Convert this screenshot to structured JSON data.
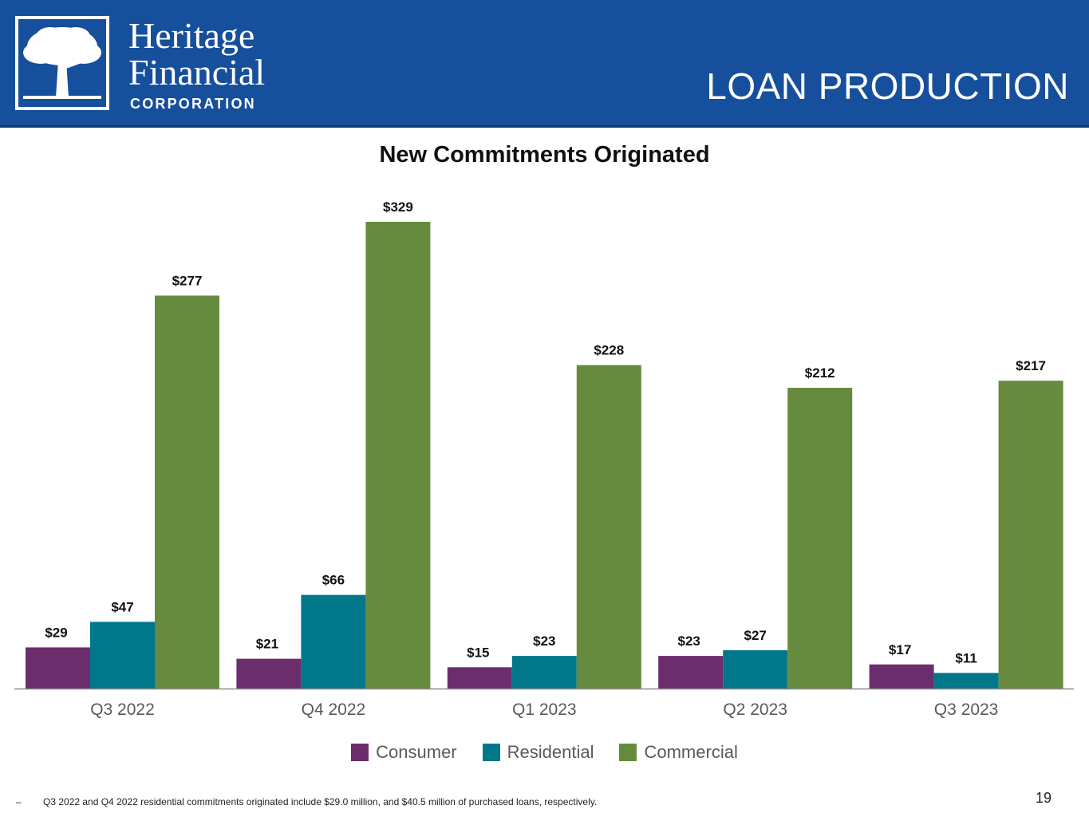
{
  "header": {
    "brand_line1": "Heritage",
    "brand_line2": "Financial",
    "brand_sub": "CORPORATION",
    "slide_title": "LOAN PRODUCTION",
    "background": "#164f9c",
    "logo_icon": "oak-tree-icon"
  },
  "chart_data": {
    "type": "bar",
    "title": "New Commitments Originated",
    "categories": [
      "Q3 2022",
      "Q4 2022",
      "Q1 2023",
      "Q2 2023",
      "Q3 2023"
    ],
    "series": [
      {
        "name": "Consumer",
        "color": "#6b2d6b",
        "values": [
          29,
          21,
          15,
          23,
          17
        ],
        "labels": [
          "$29",
          "$21",
          "$15",
          "$23",
          "$17"
        ]
      },
      {
        "name": "Residential",
        "color": "#00788a",
        "values": [
          47,
          66,
          23,
          27,
          11
        ],
        "labels": [
          "$47",
          "$66",
          "$23",
          "$27",
          "$11"
        ]
      },
      {
        "name": "Commercial",
        "color": "#678b3e",
        "values": [
          277,
          329,
          228,
          212,
          217
        ],
        "labels": [
          "$277",
          "$329",
          "$228",
          "$212",
          "$217"
        ]
      }
    ],
    "ylim": [
      0,
      329
    ],
    "grid": false,
    "legend_position": "bottom"
  },
  "footnote": {
    "bullet": "–",
    "text": "Q3 2022 and Q4 2022  residential commitments originated include $29.0 million, and  $40.5 million of purchased loans, respectively."
  },
  "page_number": "19"
}
